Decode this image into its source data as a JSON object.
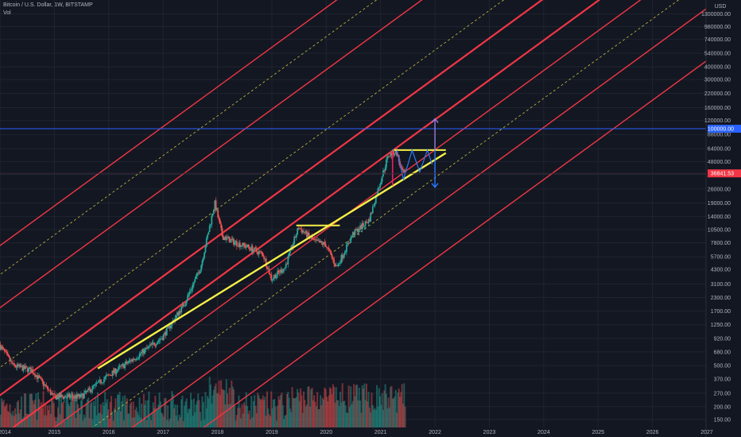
{
  "header": {
    "symbol": "Bitcoin / U.S. Dollar, 1W, BITSTAMP",
    "indicator": "Vol"
  },
  "colors": {
    "background": "#131722",
    "grid": "#1f2430",
    "channel_solid": "#f23645",
    "channel_dashed": "#c8c33a",
    "trendline": "#f5f046",
    "target_line": "#2962ff",
    "up_candle": "#26a69a",
    "down_candle": "#ef5350",
    "price_tag": "#f23645",
    "arrow_up": "#9c7bd9",
    "arrow_down": "#2979ff"
  },
  "chart_data": {
    "type": "candlestick",
    "title": "Bitcoin / U.S. Dollar, 1W, BITSTAMP",
    "y_scale": "log",
    "y_unit": "USD",
    "xlim": [
      2014.0,
      2027.0
    ],
    "ylim": [
      120,
      3000000
    ],
    "x_tick_labels": [
      "2014",
      "2015",
      "2016",
      "2017",
      "2018",
      "2019",
      "2020",
      "2021",
      "2022",
      "2023",
      "2024",
      "2025",
      "2026",
      "2027"
    ],
    "y_tick_labels": [
      "1800000.00",
      "1300000.00",
      "980000.00",
      "740000.00",
      "540000.00",
      "400000.00",
      "300000.00",
      "220000.00",
      "160000.00",
      "120000.00",
      "88000.00",
      "64000.00",
      "48000.00",
      "36000.00",
      "26000.00",
      "19000.00",
      "14000.00",
      "10500.00",
      "7800.00",
      "5700.00",
      "4300.00",
      "3100.00",
      "2300.00",
      "1700.00",
      "1250.00",
      "920.00",
      "680.00",
      "500.00",
      "370.00",
      "270.00",
      "200.00",
      "150.00"
    ],
    "current_price": "36841.53",
    "target_price": "100000.00",
    "price_path": [
      {
        "t": 2014.0,
        "p": 800
      },
      {
        "t": 2014.25,
        "p": 500
      },
      {
        "t": 2014.6,
        "p": 450
      },
      {
        "t": 2015.0,
        "p": 250
      },
      {
        "t": 2015.5,
        "p": 250
      },
      {
        "t": 2016.0,
        "p": 400
      },
      {
        "t": 2016.5,
        "p": 600
      },
      {
        "t": 2017.0,
        "p": 950
      },
      {
        "t": 2017.4,
        "p": 2000
      },
      {
        "t": 2017.7,
        "p": 4500
      },
      {
        "t": 2017.96,
        "p": 19000
      },
      {
        "t": 2018.1,
        "p": 9000
      },
      {
        "t": 2018.3,
        "p": 8000
      },
      {
        "t": 2018.6,
        "p": 7000
      },
      {
        "t": 2018.85,
        "p": 6000
      },
      {
        "t": 2019.0,
        "p": 3500
      },
      {
        "t": 2019.25,
        "p": 4500
      },
      {
        "t": 2019.5,
        "p": 11000
      },
      {
        "t": 2019.8,
        "p": 8000
      },
      {
        "t": 2020.0,
        "p": 7500
      },
      {
        "t": 2020.2,
        "p": 4500
      },
      {
        "t": 2020.5,
        "p": 9500
      },
      {
        "t": 2020.8,
        "p": 13000
      },
      {
        "t": 2021.0,
        "p": 30000
      },
      {
        "t": 2021.15,
        "p": 55000
      },
      {
        "t": 2021.3,
        "p": 60000
      },
      {
        "t": 2021.4,
        "p": 38000
      },
      {
        "t": 2021.45,
        "p": 36841
      }
    ],
    "drawings": [
      {
        "kind": "parallel_channel_lines",
        "count": 7,
        "style": "solid"
      },
      {
        "kind": "parallel_channel_lines",
        "count": 3,
        "style": "dashed"
      },
      {
        "kind": "trendline",
        "from": {
          "t": 2015.8,
          "p": 470
        },
        "to": {
          "t": 2022.2,
          "p": 58000
        }
      },
      {
        "kind": "horizontal_segment",
        "t0": 2019.45,
        "t1": 2020.25,
        "p": 11500
      },
      {
        "kind": "horizontal_segment",
        "t0": 2021.25,
        "t1": 2022.2,
        "p": 62000
      },
      {
        "kind": "horizontal_line",
        "p": 100000
      },
      {
        "kind": "price_arrow",
        "t": 2022.0,
        "from": 62000,
        "to": 125000,
        "direction": "up"
      },
      {
        "kind": "price_arrow",
        "t": 2022.0,
        "from": 62000,
        "to": 27000,
        "direction": "down"
      }
    ]
  }
}
